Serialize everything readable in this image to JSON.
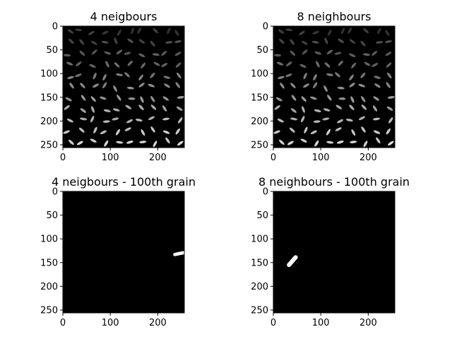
{
  "chart_data": [
    {
      "type": "heatmap",
      "title": "4 neigbours",
      "xticks": [
        0,
        100,
        200
      ],
      "yticks": [
        0,
        50,
        100,
        150,
        200,
        250
      ],
      "xlim": [
        0,
        256
      ],
      "ylim": [
        256,
        0
      ],
      "colormap": "gray",
      "content": "labeled-rice-grains"
    },
    {
      "type": "heatmap",
      "title": "8 neighbours",
      "xticks": [
        0,
        100,
        200
      ],
      "yticks": [
        0,
        50,
        100,
        150,
        200,
        250
      ],
      "xlim": [
        0,
        256
      ],
      "ylim": [
        256,
        0
      ],
      "colormap": "gray",
      "content": "labeled-rice-grains"
    },
    {
      "type": "heatmap",
      "title": "4 neigbours - 100th grain",
      "xticks": [
        0,
        100,
        200
      ],
      "yticks": [
        0,
        50,
        100,
        150,
        200,
        250
      ],
      "xlim": [
        0,
        256
      ],
      "ylim": [
        256,
        0
      ],
      "colormap": "gray",
      "highlight": {
        "x1": 236,
        "y1": 133,
        "x2": 255,
        "y2": 129,
        "width": 7
      }
    },
    {
      "type": "heatmap",
      "title": "8 neighbours - 100th grain",
      "xticks": [
        0,
        100,
        200
      ],
      "yticks": [
        0,
        50,
        100,
        150,
        200,
        250
      ],
      "xlim": [
        0,
        256
      ],
      "ylim": [
        256,
        0
      ],
      "colormap": "gray",
      "highlight": {
        "x1": 33,
        "y1": 155,
        "x2": 47,
        "y2": 139,
        "width": 9
      }
    }
  ]
}
